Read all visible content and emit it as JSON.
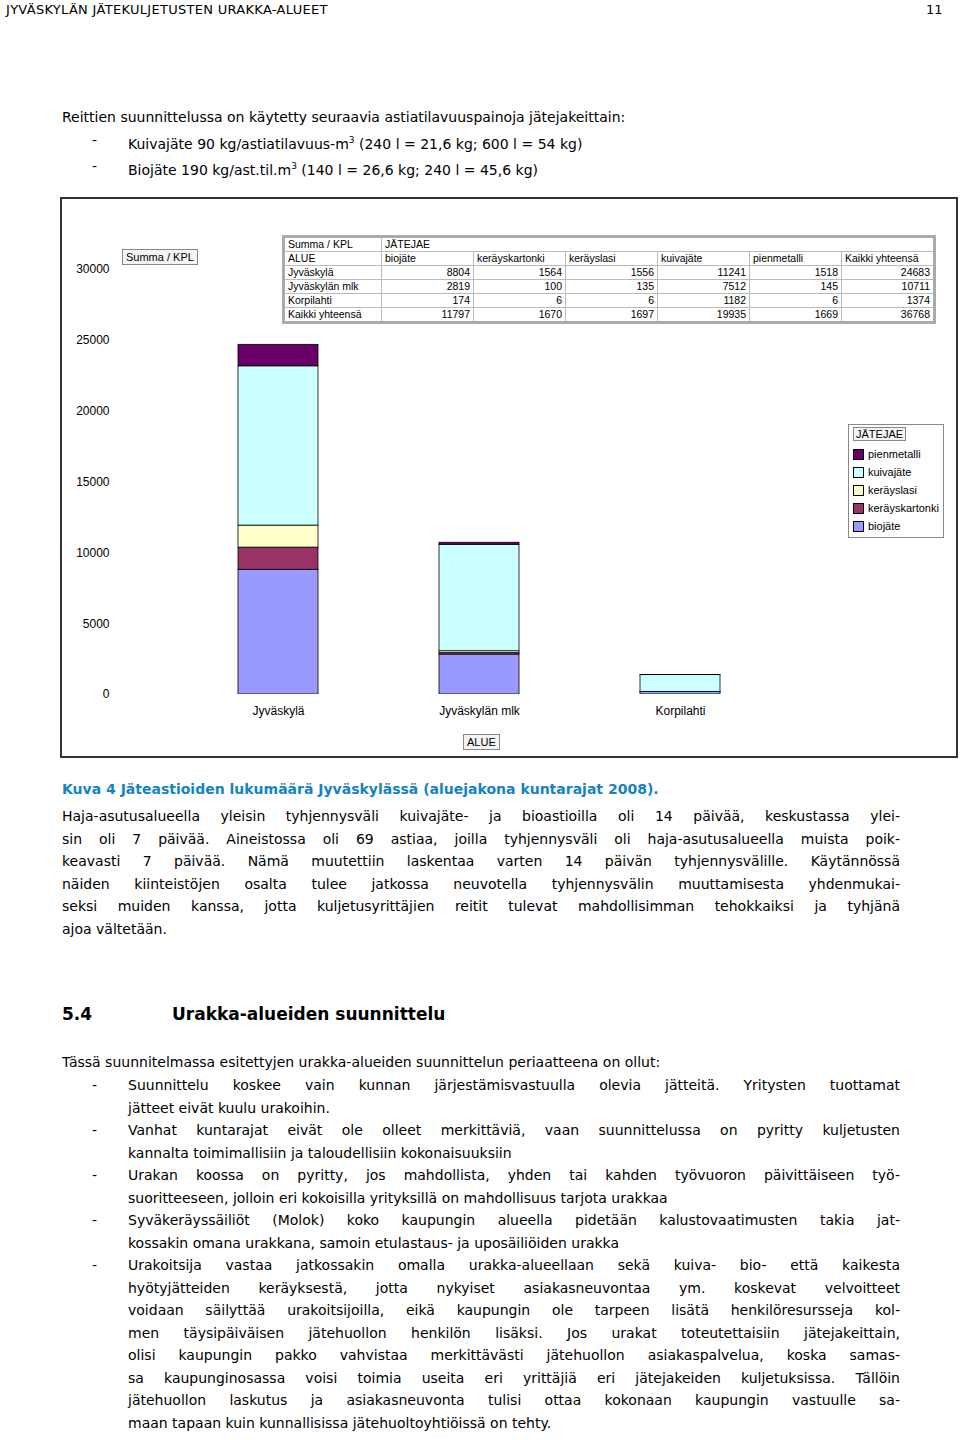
{
  "header": {
    "title": "JYVÄSKYLÄN JÄTEKULJETUSTEN URAKKA-ALUEET",
    "page": "11"
  },
  "intro": {
    "text": "Reittien suunnittelussa on käytetty seuraavia astiatilavuuspainoja jätejakeittain:",
    "bullet": "-",
    "items": [
      {
        "text": "Kuivajäte 90 kg/astiatilavuus-m",
        "sup": "3",
        "rest": " (240 l = 21,6 kg; 600 l = 54 kg)"
      },
      {
        "text": "Biojäte 190 kg/ast.til.m",
        "sup": "3",
        "rest": " (140 l = 26,6 kg; 240 l = 45,6 kg)"
      }
    ]
  },
  "chart_data": {
    "type": "bar",
    "stacked": true,
    "ylabel": "Summa / KPL",
    "xlabel": "ALUE",
    "legend_title": "JÄTEJAE",
    "legend": "right",
    "grid": false,
    "categories": [
      "Jyväskylä",
      "Jyväskylän mlk",
      "Korpilahti"
    ],
    "series": [
      {
        "name": "biojäte",
        "color": "#9999FF",
        "values": [
          8804,
          2819,
          174
        ]
      },
      {
        "name": "keräyskartonki",
        "color": "#993366",
        "values": [
          1564,
          100,
          6
        ]
      },
      {
        "name": "keräyslasi",
        "color": "#FFFFCC",
        "values": [
          1556,
          135,
          6
        ]
      },
      {
        "name": "kuivajäte",
        "color": "#CCFFFF",
        "values": [
          11241,
          7512,
          1182
        ]
      },
      {
        "name": "pienmetalli",
        "color": "#660066",
        "values": [
          1518,
          145,
          6
        ]
      }
    ],
    "ylim": [
      0,
      30000
    ],
    "yticks": [
      0,
      5000,
      10000,
      15000,
      20000,
      25000,
      30000
    ]
  },
  "pivot_table": {
    "corner": "Summa / KPL",
    "column_group": "JÄTEJAE",
    "columns": [
      "ALUE",
      "biojäte",
      "keräyskartonki",
      "keräyslasi",
      "kuivajäte",
      "pienmetalli",
      "Kaikki yhteensä"
    ],
    "rows": [
      [
        "Jyväskylä",
        8804,
        1564,
        1556,
        11241,
        1518,
        24683
      ],
      [
        "Jyväskylän mlk",
        2819,
        100,
        135,
        7512,
        145,
        10711
      ],
      [
        "Korpilahti",
        174,
        6,
        6,
        1182,
        6,
        1374
      ],
      [
        "Kaikki yhteensä",
        11797,
        1670,
        1697,
        19935,
        1669,
        36768
      ]
    ]
  },
  "caption": "Kuva 4 Jäteastioiden lukumäärä Jyväskylässä (aluejakona kuntarajat 2008).",
  "paragraph": [
    "Haja-asutusalueella yleisin tyhjennysväli kuivajäte- ja bioastioilla oli 14 päivää, keskustassa ylei-",
    "sin oli 7 päivää. Aineistossa oli 69 astiaa, joilla tyhjennysväli oli haja-asutusalueella muista poik-",
    "keavasti 7 päivää. Nämä muutettiin laskentaa varten 14 päivän tyhjennysvälille. Käytännössä",
    "näiden kiinteistöjen osalta tulee jatkossa neuvotella tyhjennysvälin muuttamisesta yhdenmukai-",
    "seksi muiden kanssa, jotta kuljetusyrittäjien reitit tulevat mahdollisimman tehokkaiksi ja tyhjänä",
    "ajoa vältetään."
  ],
  "section": {
    "number": "5.4",
    "title": "Urakka-alueiden suunnittelu",
    "intro": "Tässä suunnitelmassa esitettyjen urakka-alueiden suunnittelun periaatteena on ollut:",
    "bullet": "-",
    "items": [
      [
        "Suunnittelu koskee vain kunnan järjestämisvastuulla olevia jätteitä. Yritysten tuottamat",
        "jätteet eivät kuulu urakoihin."
      ],
      [
        "Vanhat kuntarajat eivät ole olleet merkittäviä, vaan suunnittelussa on pyritty kuljetusten",
        "kannalta toimimallisiin ja taloudellisiin kokonaisuuksiin"
      ],
      [
        "Urakan koossa on pyritty, jos mahdollista, yhden tai kahden työvuoron päivittäiseen työ-",
        "suoritteeseen, jolloin eri kokoisilla yrityksillä on mahdollisuus tarjota urakkaa"
      ],
      [
        "Syväkeräyssäiliöt (Molok) koko kaupungin alueella pidetään kalustovaatimusten takia jat-",
        "kossakin omana urakkana, samoin etulastaus- ja uposäiliöiden urakka"
      ],
      [
        "Urakoitsija vastaa jatkossakin omalla urakka-alueellaan sekä kuiva- bio- että kaikesta",
        "hyötyjätteiden keräyksestä, jotta nykyiset asiakasneuvontaa ym. koskevat velvoitteet",
        "voidaan säilyttää urakoitsijoilla, eikä kaupungin ole tarpeen lisätä henkilöresursseja kol-",
        "men täysipäiväisen jätehuollon henkilön lisäksi. Jos urakat toteutettaisiin jätejakeittain,",
        "olisi kaupungin pakko vahvistaa merkittävästi jätehuollon asiakaspalvelua, koska samas-",
        "sa kaupunginosassa voisi toimia useita eri yrittäjiä eri jätejakeiden kuljetuksissa. Tällöin",
        "jätehuollon laskutus ja asiakasneuvonta tulisi ottaa kokonaan kaupungin vastuulle sa-",
        "maan tapaan kuin kunnallisissa jätehuoltoyhtiöissä on tehty."
      ]
    ]
  }
}
